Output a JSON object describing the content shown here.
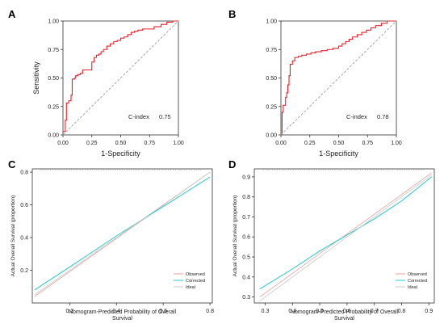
{
  "chart_data": [
    {
      "panel": "A",
      "type": "line",
      "xlabel": "1-Specificity",
      "ylabel": "Sensitivity",
      "xlim": [
        0,
        1
      ],
      "ylim": [
        0,
        1
      ],
      "xticks": [
        "0.00",
        "0.25",
        "0.50",
        "0.75",
        "1.00"
      ],
      "yticks": [
        "0.00",
        "0.25",
        "0.50",
        "0.75",
        "1.00"
      ],
      "annotation": {
        "label": "C-index",
        "value": "0.75"
      },
      "colors": {
        "roc": "#e8202a",
        "reference": "#9e9e9e"
      },
      "series": [
        {
          "style": "step",
          "x": [
            0,
            0.02,
            0.03,
            0.05,
            0.07,
            0.08,
            0.1,
            0.11,
            0.13,
            0.15,
            0.17,
            0.19,
            0.22,
            0.25,
            0.27,
            0.29,
            0.31,
            0.33,
            0.35,
            0.38,
            0.41,
            0.44,
            0.47,
            0.5,
            0.53,
            0.56,
            0.59,
            0.62,
            0.65,
            0.69,
            0.74,
            0.79,
            0.85,
            0.9,
            0.95,
            1.0
          ],
          "y": [
            0.03,
            0.13,
            0.28,
            0.3,
            0.35,
            0.49,
            0.5,
            0.52,
            0.53,
            0.54,
            0.57,
            0.57,
            0.57,
            0.64,
            0.68,
            0.7,
            0.71,
            0.73,
            0.75,
            0.78,
            0.8,
            0.82,
            0.83,
            0.85,
            0.86,
            0.88,
            0.9,
            0.91,
            0.92,
            0.93,
            0.93,
            0.95,
            0.97,
            0.99,
            1.0,
            1.0
          ]
        },
        {
          "style": "dashed",
          "x": [
            0,
            1
          ],
          "y": [
            0,
            1
          ]
        }
      ]
    },
    {
      "panel": "B",
      "type": "line",
      "xlabel": "1-Specificity",
      "ylabel": "",
      "xlim": [
        0,
        1
      ],
      "ylim": [
        0,
        1
      ],
      "xticks": [
        "0.00",
        "0.25",
        "0.50",
        "0.75",
        "1.00"
      ],
      "yticks": [
        "0.00",
        "0.25",
        "0.50",
        "0.75",
        "1.00"
      ],
      "annotation": {
        "label": "C-index",
        "value": "0.78"
      },
      "colors": {
        "roc": "#e8202a",
        "reference": "#9e9e9e"
      },
      "series": [
        {
          "style": "step",
          "x": [
            0,
            0.01,
            0.02,
            0.04,
            0.05,
            0.06,
            0.07,
            0.08,
            0.1,
            0.12,
            0.15,
            0.18,
            0.22,
            0.26,
            0.3,
            0.35,
            0.4,
            0.45,
            0.5,
            0.53,
            0.56,
            0.59,
            0.62,
            0.66,
            0.7,
            0.74,
            0.78,
            0.82,
            0.87,
            0.92,
            1.0
          ],
          "y": [
            0,
            0.2,
            0.26,
            0.33,
            0.37,
            0.44,
            0.52,
            0.62,
            0.65,
            0.68,
            0.69,
            0.7,
            0.71,
            0.72,
            0.73,
            0.74,
            0.75,
            0.76,
            0.78,
            0.8,
            0.82,
            0.84,
            0.86,
            0.88,
            0.9,
            0.92,
            0.94,
            0.96,
            0.98,
            1.0,
            1.0
          ]
        },
        {
          "style": "dashed",
          "x": [
            0,
            1
          ],
          "y": [
            0,
            1
          ]
        }
      ]
    },
    {
      "panel": "C",
      "type": "line",
      "xlabel": "Nomogram-Predicted Probability of Overall Survival",
      "ylabel": "Actual Overall Survival (proportion)",
      "xlim": [
        0.04,
        0.81
      ],
      "ylim": [
        0,
        0.82
      ],
      "xticks": [
        "0.2",
        "0.4",
        "0.6",
        "0.8"
      ],
      "yticks": [
        "0.2",
        "0.4",
        "0.6",
        "0.8"
      ],
      "legend": {
        "position": "bottom-right",
        "entries": [
          "Observed",
          "Corrected",
          "Ideal"
        ]
      },
      "colors": {
        "Observed": "#e8a0a0",
        "Corrected": "#20c8c8",
        "Ideal": "#c8c8c8"
      },
      "series": [
        {
          "name": "Observed",
          "x": [
            0.05,
            0.8
          ],
          "y": [
            0.04,
            0.8
          ]
        },
        {
          "name": "Corrected",
          "x": [
            0.05,
            0.2,
            0.4,
            0.6,
            0.8
          ],
          "y": [
            0.08,
            0.22,
            0.41,
            0.59,
            0.77
          ]
        },
        {
          "name": "Ideal",
          "x": [
            0.05,
            0.8
          ],
          "y": [
            0.05,
            0.8
          ]
        }
      ]
    },
    {
      "panel": "D",
      "type": "line",
      "xlabel": "Nomogram-Predicted Probability of Overall Survival",
      "ylabel": "Actual Overall Survival (proportion)",
      "xlim": [
        0.26,
        0.92
      ],
      "ylim": [
        0.27,
        0.94
      ],
      "xticks": [
        "0.3",
        "0.4",
        "0.5",
        "0.6",
        "0.7",
        "0.8",
        "0.9"
      ],
      "yticks": [
        "0.3",
        "0.4",
        "0.5",
        "0.6",
        "0.7",
        "0.8",
        "0.9"
      ],
      "legend": {
        "position": "bottom-right",
        "entries": [
          "Observed",
          "Corrected",
          "Ideal"
        ]
      },
      "colors": {
        "Observed": "#e8a0a0",
        "Corrected": "#20c8c8",
        "Ideal": "#c8c8c8"
      },
      "series": [
        {
          "name": "Observed",
          "x": [
            0.28,
            0.91
          ],
          "y": [
            0.3,
            0.92
          ]
        },
        {
          "name": "Corrected",
          "x": [
            0.28,
            0.4,
            0.5,
            0.6,
            0.7,
            0.8,
            0.91
          ],
          "y": [
            0.34,
            0.44,
            0.53,
            0.61,
            0.69,
            0.78,
            0.9
          ]
        },
        {
          "name": "Ideal",
          "x": [
            0.28,
            0.91
          ],
          "y": [
            0.28,
            0.91
          ]
        }
      ]
    }
  ]
}
